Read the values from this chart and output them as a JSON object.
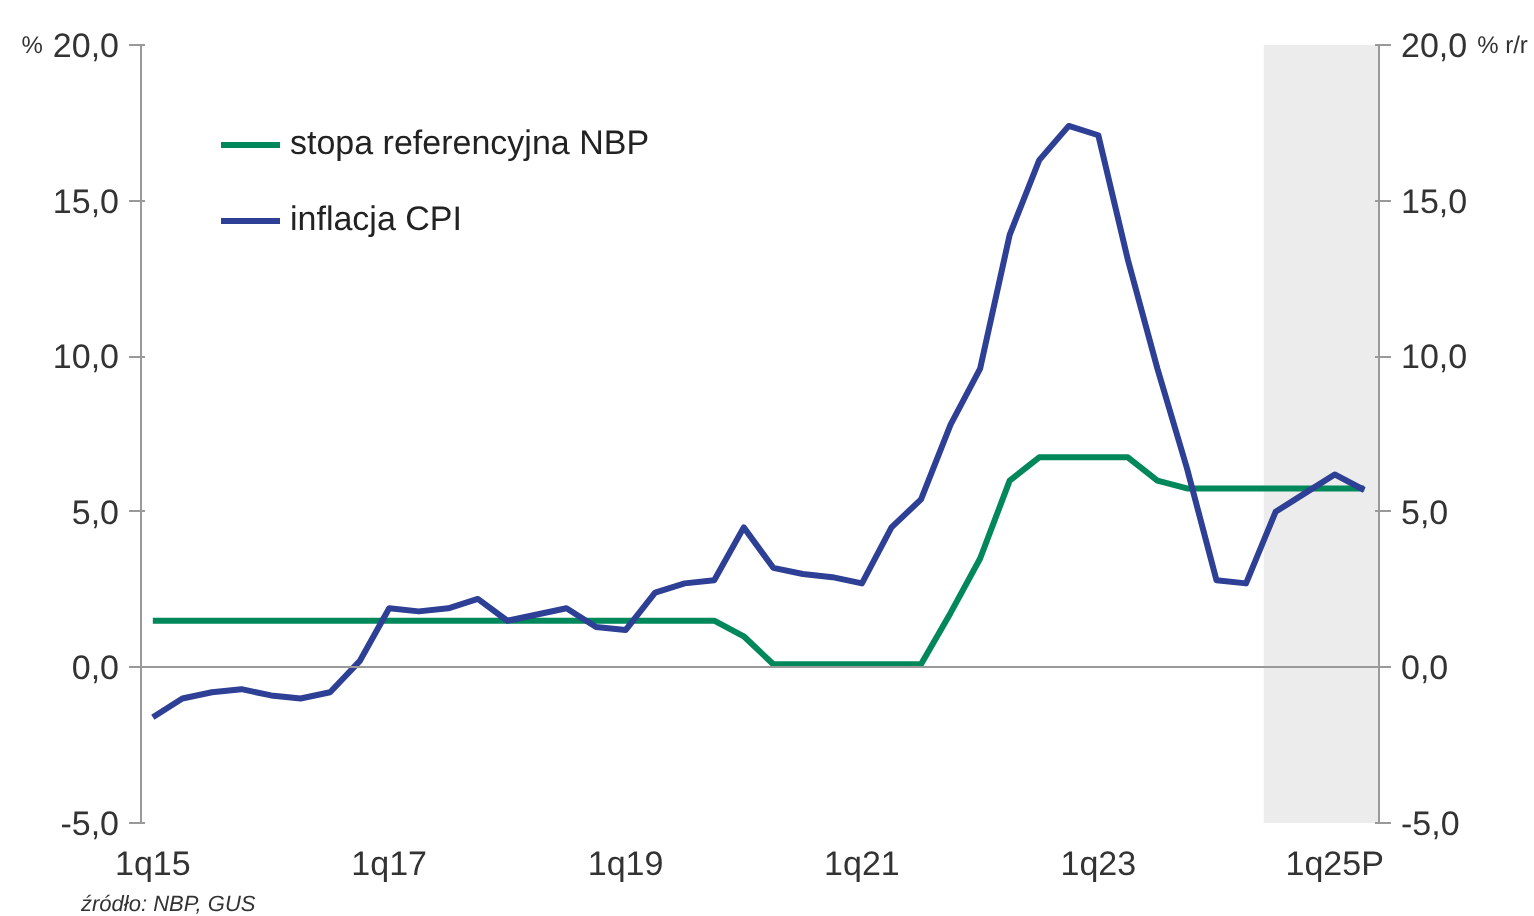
{
  "chart_data": {
    "type": "line",
    "categories": [
      "1q15",
      null,
      null,
      null,
      null,
      null,
      null,
      null,
      "1q17",
      null,
      null,
      null,
      null,
      null,
      null,
      null,
      "1q19",
      null,
      null,
      null,
      null,
      null,
      null,
      null,
      "1q21",
      null,
      null,
      null,
      null,
      null,
      null,
      null,
      "1q23",
      null,
      null,
      null,
      null,
      null,
      null,
      null,
      "1q25P",
      null
    ],
    "series": [
      {
        "name": "stopa referencyjna NBP",
        "color": "#00875a",
        "values": [
          1.5,
          1.5,
          1.5,
          1.5,
          1.5,
          1.5,
          1.5,
          1.5,
          1.5,
          1.5,
          1.5,
          1.5,
          1.5,
          1.5,
          1.5,
          1.5,
          1.5,
          1.5,
          1.5,
          1.5,
          1.0,
          0.1,
          0.1,
          0.1,
          0.1,
          0.1,
          0.1,
          1.75,
          3.5,
          6.0,
          6.75,
          6.75,
          6.75,
          6.75,
          6.0,
          5.75,
          5.75,
          5.75,
          5.75,
          5.75,
          5.75,
          5.75
        ]
      },
      {
        "name": "inflacja CPI",
        "color": "#2e3f96",
        "values": [
          -1.6,
          -1.0,
          -0.8,
          -0.7,
          -0.9,
          -1.0,
          -0.8,
          0.2,
          1.9,
          1.8,
          1.9,
          2.2,
          1.5,
          1.7,
          1.9,
          1.3,
          1.2,
          2.4,
          2.7,
          2.8,
          4.5,
          3.2,
          3.0,
          2.9,
          2.7,
          4.5,
          5.4,
          7.8,
          9.6,
          13.9,
          16.3,
          17.4,
          17.1,
          13.1,
          9.6,
          6.4,
          2.8,
          2.7,
          5.0,
          5.6,
          6.2,
          5.7
        ]
      }
    ],
    "ylim": [
      -5,
      20
    ],
    "yticks": [
      {
        "value": -5,
        "label": "-5,0"
      },
      {
        "value": 0,
        "label": "0,0"
      },
      {
        "value": 5,
        "label": "5,0"
      },
      {
        "value": 10,
        "label": "10,0"
      },
      {
        "value": 15,
        "label": "15,0"
      },
      {
        "value": 20,
        "label": "20,0"
      }
    ],
    "y2lim": [
      -5,
      20
    ],
    "y2ticks": [
      {
        "value": -5,
        "label": "-5,0"
      },
      {
        "value": 0,
        "label": "0,0"
      },
      {
        "value": 5,
        "label": "5,0"
      },
      {
        "value": 10,
        "label": "10,0"
      },
      {
        "value": 15,
        "label": "15,0"
      },
      {
        "value": 20,
        "label": "20,0"
      }
    ],
    "ylabel": "%",
    "y2label": "% r/r",
    "legend": "top left",
    "annotations": [
      "źródło: NBP, GUS"
    ]
  }
}
